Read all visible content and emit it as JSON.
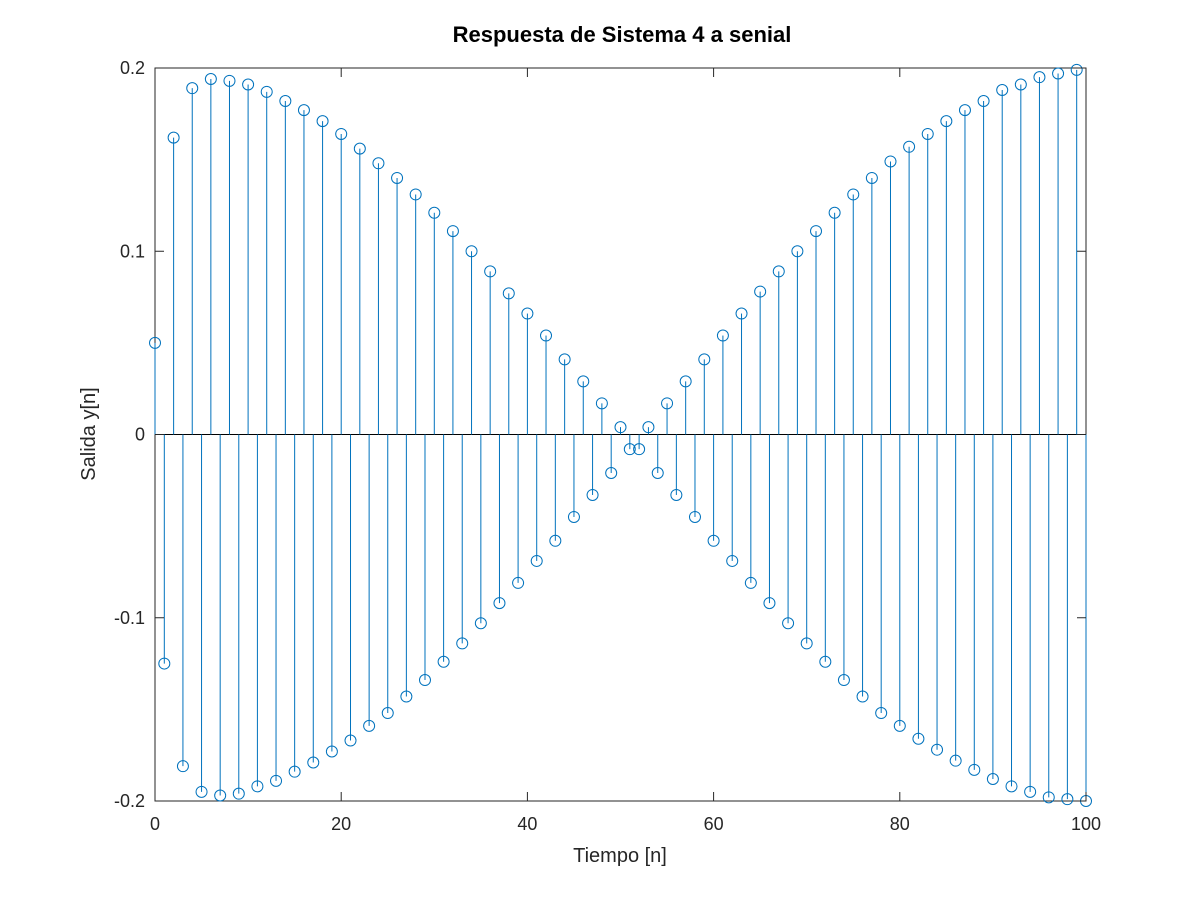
{
  "chart_data": {
    "type": "stem",
    "title": "Respuesta de Sistema 4 a senial",
    "xlabel": "Tiempo [n]",
    "ylabel": "Salida y[n]",
    "xlim": [
      0,
      100
    ],
    "ylim": [
      -0.2,
      0.2
    ],
    "x_ticks": [
      0,
      20,
      40,
      60,
      80,
      100
    ],
    "x_tick_labels": [
      "0",
      "20",
      "40",
      "60",
      "80",
      "100"
    ],
    "y_ticks": [
      -0.2,
      -0.1,
      0,
      0.1,
      0.2
    ],
    "y_tick_labels": [
      "-0.2",
      "-0.1",
      "0",
      "0.1",
      "0.2"
    ],
    "grid": false,
    "marker": "circle",
    "color": "#0072bd",
    "series": [
      {
        "x": [
          0,
          1,
          2,
          3,
          4,
          5,
          6,
          7,
          8,
          9,
          10,
          11,
          12,
          13,
          14,
          15,
          16,
          17,
          18,
          19,
          20,
          21,
          22,
          23,
          24,
          25,
          26,
          27,
          28,
          29,
          30,
          31,
          32,
          33,
          34,
          35,
          36,
          37,
          38,
          39,
          40,
          41,
          42,
          43,
          44,
          45,
          46,
          47,
          48,
          49,
          50,
          51,
          52,
          53,
          54,
          55,
          56,
          57,
          58,
          59,
          60,
          61,
          62,
          63,
          64,
          65,
          66,
          67,
          68,
          69,
          70,
          71,
          72,
          73,
          74,
          75,
          76,
          77,
          78,
          79,
          80,
          81,
          82,
          83,
          84,
          85,
          86,
          87,
          88,
          89,
          90,
          91,
          92,
          93,
          94,
          95,
          96,
          97,
          98,
          99,
          100
        ],
        "y": [
          0.05,
          -0.125,
          0.162,
          -0.181,
          0.189,
          -0.195,
          0.194,
          -0.197,
          0.193,
          -0.196,
          0.191,
          -0.192,
          0.187,
          -0.189,
          0.182,
          -0.184,
          0.177,
          -0.179,
          0.171,
          -0.173,
          0.164,
          -0.167,
          0.156,
          -0.159,
          0.148,
          -0.152,
          0.14,
          -0.143,
          0.131,
          -0.134,
          0.121,
          -0.124,
          0.111,
          -0.114,
          0.1,
          -0.103,
          0.089,
          -0.092,
          0.077,
          -0.081,
          0.066,
          -0.069,
          0.054,
          -0.058,
          0.041,
          -0.045,
          0.029,
          -0.033,
          0.017,
          -0.021,
          0.004,
          -0.008,
          -0.008,
          0.004,
          -0.021,
          0.017,
          -0.033,
          0.029,
          -0.045,
          0.041,
          -0.058,
          0.054,
          -0.069,
          0.066,
          -0.081,
          0.078,
          -0.092,
          0.089,
          -0.103,
          0.1,
          -0.114,
          0.111,
          -0.124,
          0.121,
          -0.134,
          0.131,
          -0.143,
          0.14,
          -0.152,
          0.149,
          -0.159,
          0.157,
          -0.166,
          0.164,
          -0.172,
          0.171,
          -0.178,
          0.177,
          -0.183,
          0.182,
          -0.188,
          0.188,
          -0.192,
          0.191,
          -0.195,
          0.195,
          -0.198,
          0.197,
          -0.199,
          0.199,
          -0.2
        ]
      }
    ]
  }
}
